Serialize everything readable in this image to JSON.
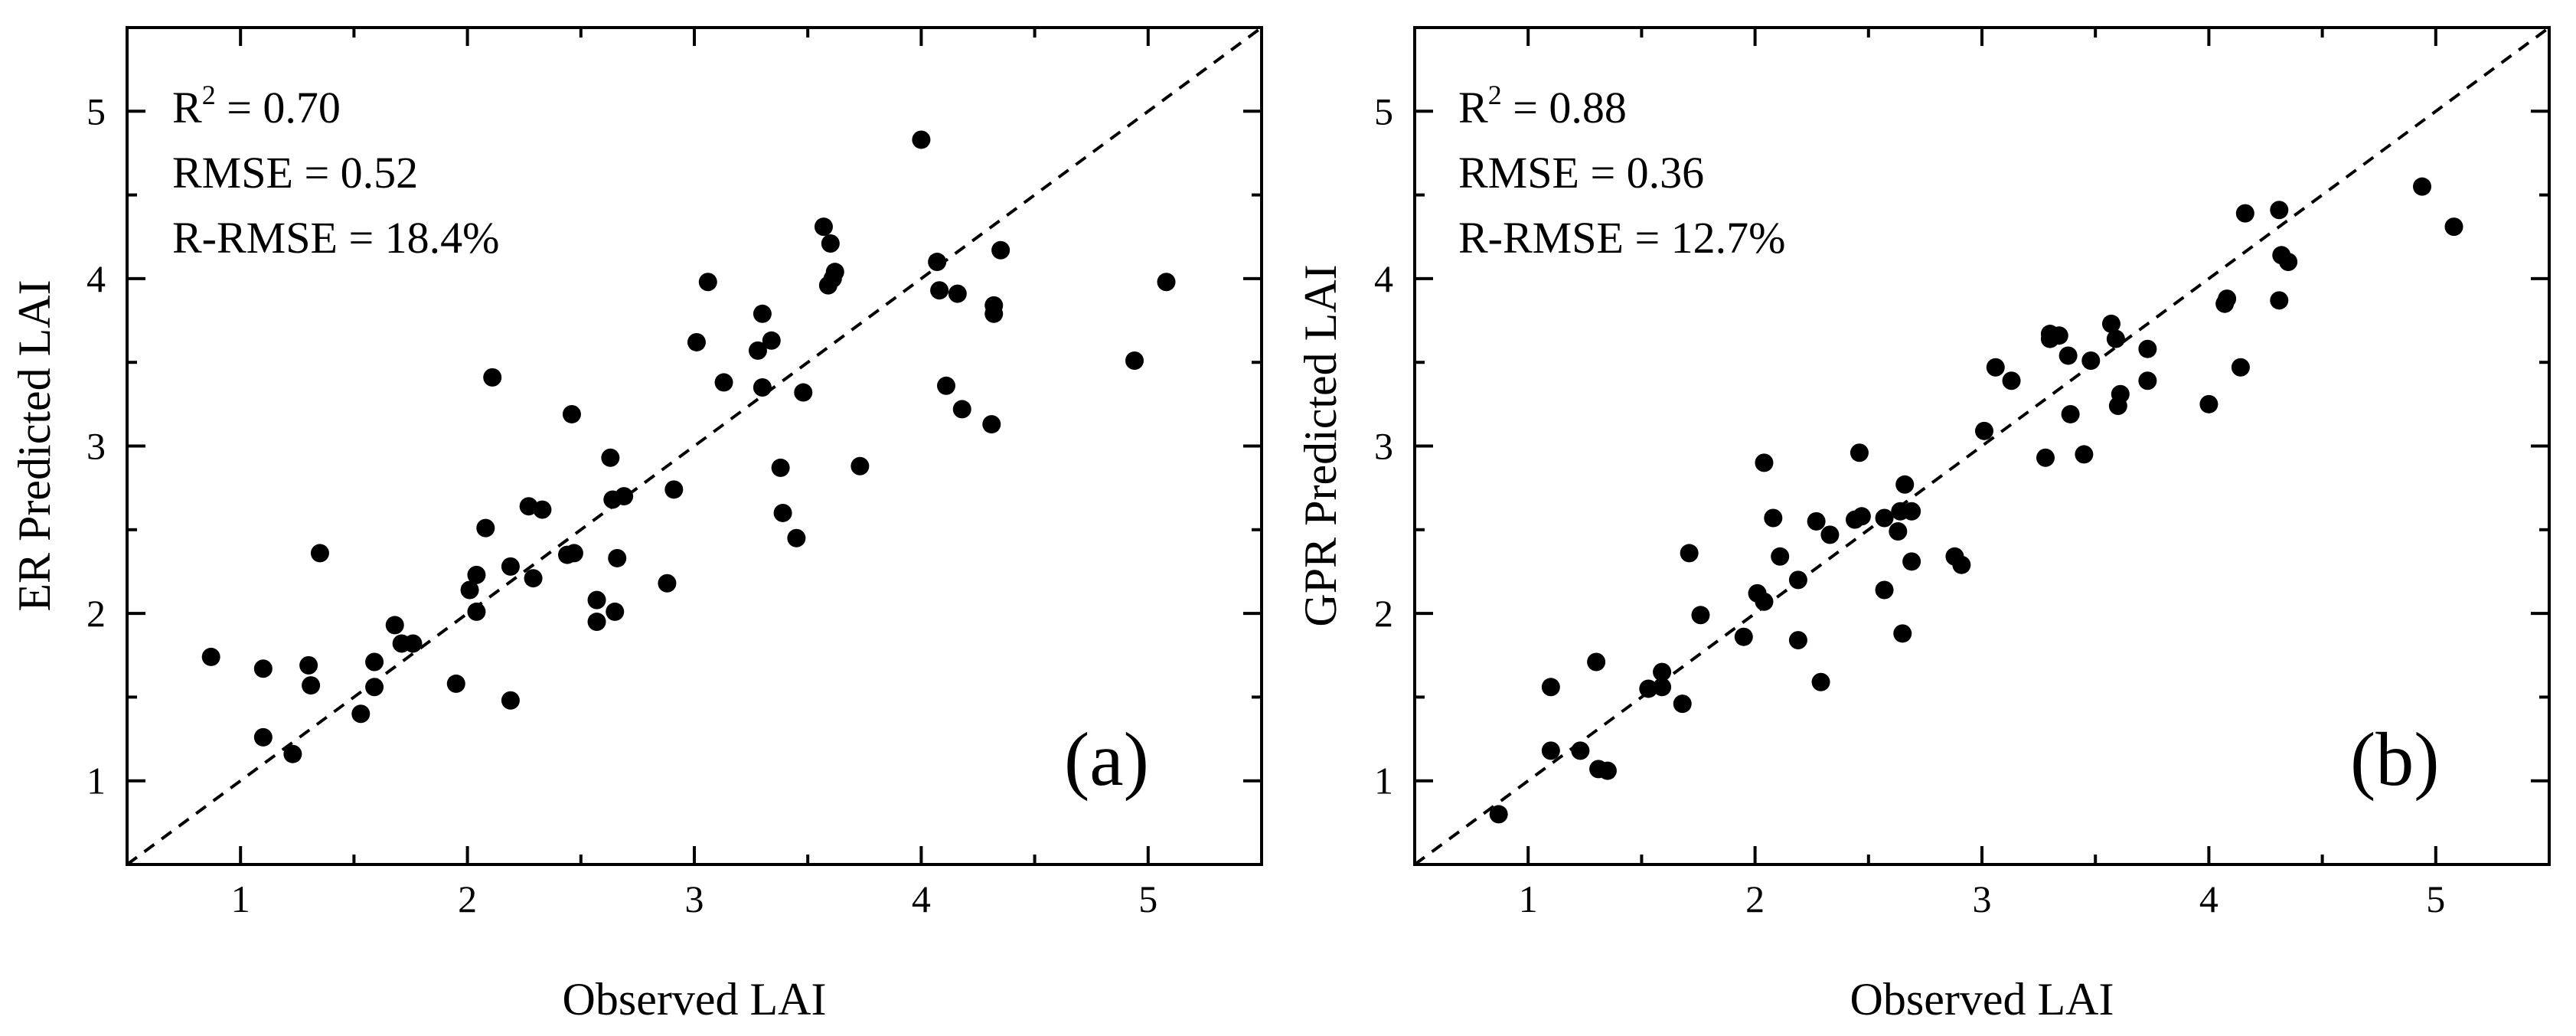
{
  "chart_data": [
    {
      "type": "scatter",
      "panel_label": "(a)",
      "xlabel": "Observed LAI",
      "ylabel": "ER Predicted LAI",
      "xlim": [
        0.5,
        5.5
      ],
      "ylim": [
        0.5,
        5.5
      ],
      "xticks": [
        "1",
        "2",
        "3",
        "4",
        "5"
      ],
      "yticks": [
        "1",
        "2",
        "3",
        "4",
        "5"
      ],
      "stats": {
        "r2_label": "R",
        "r2_sup": "2",
        "r2_value": " = 0.70",
        "rmse": "RMSE = 0.52",
        "rrmse": "R-RMSE = 18.4%"
      },
      "reference_line": "1:1",
      "points": [
        [
          0.87,
          1.74
        ],
        [
          1.1,
          1.67
        ],
        [
          1.1,
          1.26
        ],
        [
          1.23,
          1.16
        ],
        [
          1.3,
          1.69
        ],
        [
          1.31,
          1.57
        ],
        [
          1.35,
          2.36
        ],
        [
          1.53,
          1.4
        ],
        [
          1.59,
          1.71
        ],
        [
          1.59,
          1.56
        ],
        [
          1.68,
          1.93
        ],
        [
          1.71,
          1.82
        ],
        [
          1.76,
          1.82
        ],
        [
          1.95,
          1.58
        ],
        [
          2.01,
          2.14
        ],
        [
          2.04,
          2.23
        ],
        [
          2.04,
          2.01
        ],
        [
          2.08,
          2.51
        ],
        [
          2.11,
          3.41
        ],
        [
          2.19,
          2.28
        ],
        [
          2.19,
          1.48
        ],
        [
          2.27,
          2.64
        ],
        [
          2.29,
          2.21
        ],
        [
          2.33,
          2.62
        ],
        [
          2.44,
          2.35
        ],
        [
          2.46,
          3.19
        ],
        [
          2.47,
          2.36
        ],
        [
          2.57,
          2.08
        ],
        [
          2.57,
          1.95
        ],
        [
          2.63,
          2.93
        ],
        [
          2.64,
          2.68
        ],
        [
          2.65,
          2.01
        ],
        [
          2.66,
          2.33
        ],
        [
          2.69,
          2.7
        ],
        [
          2.88,
          2.18
        ],
        [
          2.91,
          2.74
        ],
        [
          3.01,
          3.62
        ],
        [
          3.06,
          3.98
        ],
        [
          3.13,
          3.38
        ],
        [
          3.28,
          3.57
        ],
        [
          3.3,
          3.79
        ],
        [
          3.3,
          3.35
        ],
        [
          3.34,
          3.63
        ],
        [
          3.38,
          2.87
        ],
        [
          3.39,
          2.6
        ],
        [
          3.45,
          2.45
        ],
        [
          3.48,
          3.32
        ],
        [
          3.57,
          4.31
        ],
        [
          3.59,
          3.96
        ],
        [
          3.6,
          4.21
        ],
        [
          3.61,
          4.0
        ],
        [
          3.62,
          4.04
        ],
        [
          3.73,
          2.88
        ],
        [
          4.0,
          4.83
        ],
        [
          4.07,
          4.1
        ],
        [
          4.08,
          3.93
        ],
        [
          4.11,
          3.36
        ],
        [
          4.16,
          3.91
        ],
        [
          4.18,
          3.22
        ],
        [
          4.31,
          3.13
        ],
        [
          4.32,
          3.79
        ],
        [
          4.32,
          3.84
        ],
        [
          4.35,
          4.17
        ],
        [
          4.94,
          3.51
        ],
        [
          5.08,
          3.98
        ]
      ]
    },
    {
      "type": "scatter",
      "panel_label": "(b)",
      "xlabel": "Observed LAI",
      "ylabel": "GPR Predicted LAI",
      "xlim": [
        0.5,
        5.5
      ],
      "ylim": [
        0.5,
        5.5
      ],
      "xticks": [
        "1",
        "2",
        "3",
        "4",
        "5"
      ],
      "yticks": [
        "1",
        "2",
        "3",
        "4",
        "5"
      ],
      "stats": {
        "r2_label": "R",
        "r2_sup": "2",
        "r2_value": " = 0.88",
        "rmse": "RMSE = 0.36",
        "rrmse": "R-RMSE = 12.7%"
      },
      "reference_line": "1:1",
      "points": [
        [
          0.87,
          0.8
        ],
        [
          1.1,
          1.56
        ],
        [
          1.1,
          1.18
        ],
        [
          1.23,
          1.18
        ],
        [
          1.3,
          1.71
        ],
        [
          1.31,
          1.07
        ],
        [
          1.35,
          1.06
        ],
        [
          1.53,
          1.55
        ],
        [
          1.59,
          1.65
        ],
        [
          1.59,
          1.56
        ],
        [
          1.68,
          1.46
        ],
        [
          1.71,
          2.36
        ],
        [
          1.76,
          1.99
        ],
        [
          1.95,
          1.86
        ],
        [
          2.01,
          2.12
        ],
        [
          2.04,
          2.9
        ],
        [
          2.04,
          2.07
        ],
        [
          2.08,
          2.57
        ],
        [
          2.11,
          2.34
        ],
        [
          2.19,
          2.2
        ],
        [
          2.19,
          1.84
        ],
        [
          2.27,
          2.55
        ],
        [
          2.29,
          1.59
        ],
        [
          2.33,
          2.47
        ],
        [
          2.44,
          2.56
        ],
        [
          2.46,
          2.96
        ],
        [
          2.47,
          2.58
        ],
        [
          2.57,
          2.57
        ],
        [
          2.57,
          2.14
        ],
        [
          2.63,
          2.49
        ],
        [
          2.64,
          2.61
        ],
        [
          2.65,
          1.88
        ],
        [
          2.66,
          2.77
        ],
        [
          2.69,
          2.31
        ],
        [
          2.69,
          2.61
        ],
        [
          2.88,
          2.34
        ],
        [
          2.91,
          2.29
        ],
        [
          3.01,
          3.09
        ],
        [
          3.06,
          3.47
        ],
        [
          3.13,
          3.39
        ],
        [
          3.28,
          2.93
        ],
        [
          3.3,
          3.64
        ],
        [
          3.3,
          3.67
        ],
        [
          3.34,
          3.66
        ],
        [
          3.38,
          3.54
        ],
        [
          3.39,
          3.19
        ],
        [
          3.45,
          2.95
        ],
        [
          3.48,
          3.51
        ],
        [
          3.57,
          3.73
        ],
        [
          3.59,
          3.64
        ],
        [
          3.6,
          3.24
        ],
        [
          3.61,
          3.31
        ],
        [
          3.73,
          3.39
        ],
        [
          3.73,
          3.58
        ],
        [
          4.0,
          3.25
        ],
        [
          4.07,
          3.85
        ],
        [
          4.08,
          3.88
        ],
        [
          4.14,
          3.47
        ],
        [
          4.16,
          4.39
        ],
        [
          4.31,
          4.41
        ],
        [
          4.31,
          3.87
        ],
        [
          4.32,
          4.14
        ],
        [
          4.35,
          4.1
        ],
        [
          4.94,
          4.55
        ],
        [
          5.08,
          4.31
        ]
      ]
    }
  ]
}
